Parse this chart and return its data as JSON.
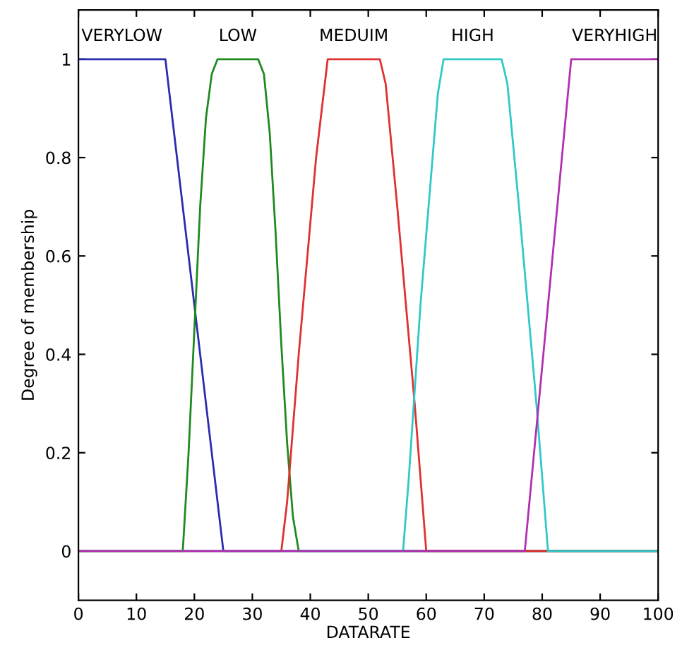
{
  "chart_data": {
    "type": "line",
    "xlabel": "DATARATE",
    "ylabel": "Degree of membership",
    "xlim": [
      0,
      100
    ],
    "ylim": [
      -0.1,
      1.1
    ],
    "xticks": [
      0,
      10,
      20,
      30,
      40,
      50,
      60,
      70,
      80,
      90,
      100
    ],
    "yticks": [
      0,
      0.2,
      0.4,
      0.6,
      0.8,
      1
    ],
    "grid": false,
    "legend": false,
    "marker": "none",
    "line_style": "solid",
    "series": [
      {
        "name": "VERYLOW",
        "color": "#2b2bb0",
        "x": [
          0,
          15,
          25,
          100
        ],
        "values": [
          1,
          1,
          0,
          0
        ]
      },
      {
        "name": "LOW",
        "color": "#1f8a1f",
        "x": [
          0,
          18,
          19,
          20,
          21,
          22,
          23,
          24,
          31,
          32,
          33,
          34,
          35,
          36,
          37,
          38,
          100
        ],
        "values": [
          0,
          0,
          0.2,
          0.45,
          0.7,
          0.88,
          0.97,
          1,
          1,
          0.97,
          0.85,
          0.65,
          0.42,
          0.22,
          0.07,
          0,
          0
        ]
      },
      {
        "name": "MEDUIM",
        "color": "#e03030",
        "x": [
          0,
          35,
          36,
          38,
          41,
          43,
          52,
          53,
          55,
          58,
          60,
          100
        ],
        "values": [
          0,
          0,
          0.1,
          0.4,
          0.8,
          1,
          1,
          0.95,
          0.7,
          0.3,
          0,
          0
        ]
      },
      {
        "name": "HIGH",
        "color": "#30c8c8",
        "x": [
          0,
          56,
          57,
          59,
          62,
          63,
          73,
          74,
          76,
          79,
          81,
          100
        ],
        "values": [
          0,
          0,
          0.15,
          0.5,
          0.93,
          1,
          1,
          0.95,
          0.7,
          0.3,
          0,
          0
        ]
      },
      {
        "name": "VERYHIGH",
        "color": "#b030b0",
        "x": [
          0,
          77,
          85,
          100
        ],
        "values": [
          0,
          0,
          1,
          1
        ]
      }
    ]
  }
}
